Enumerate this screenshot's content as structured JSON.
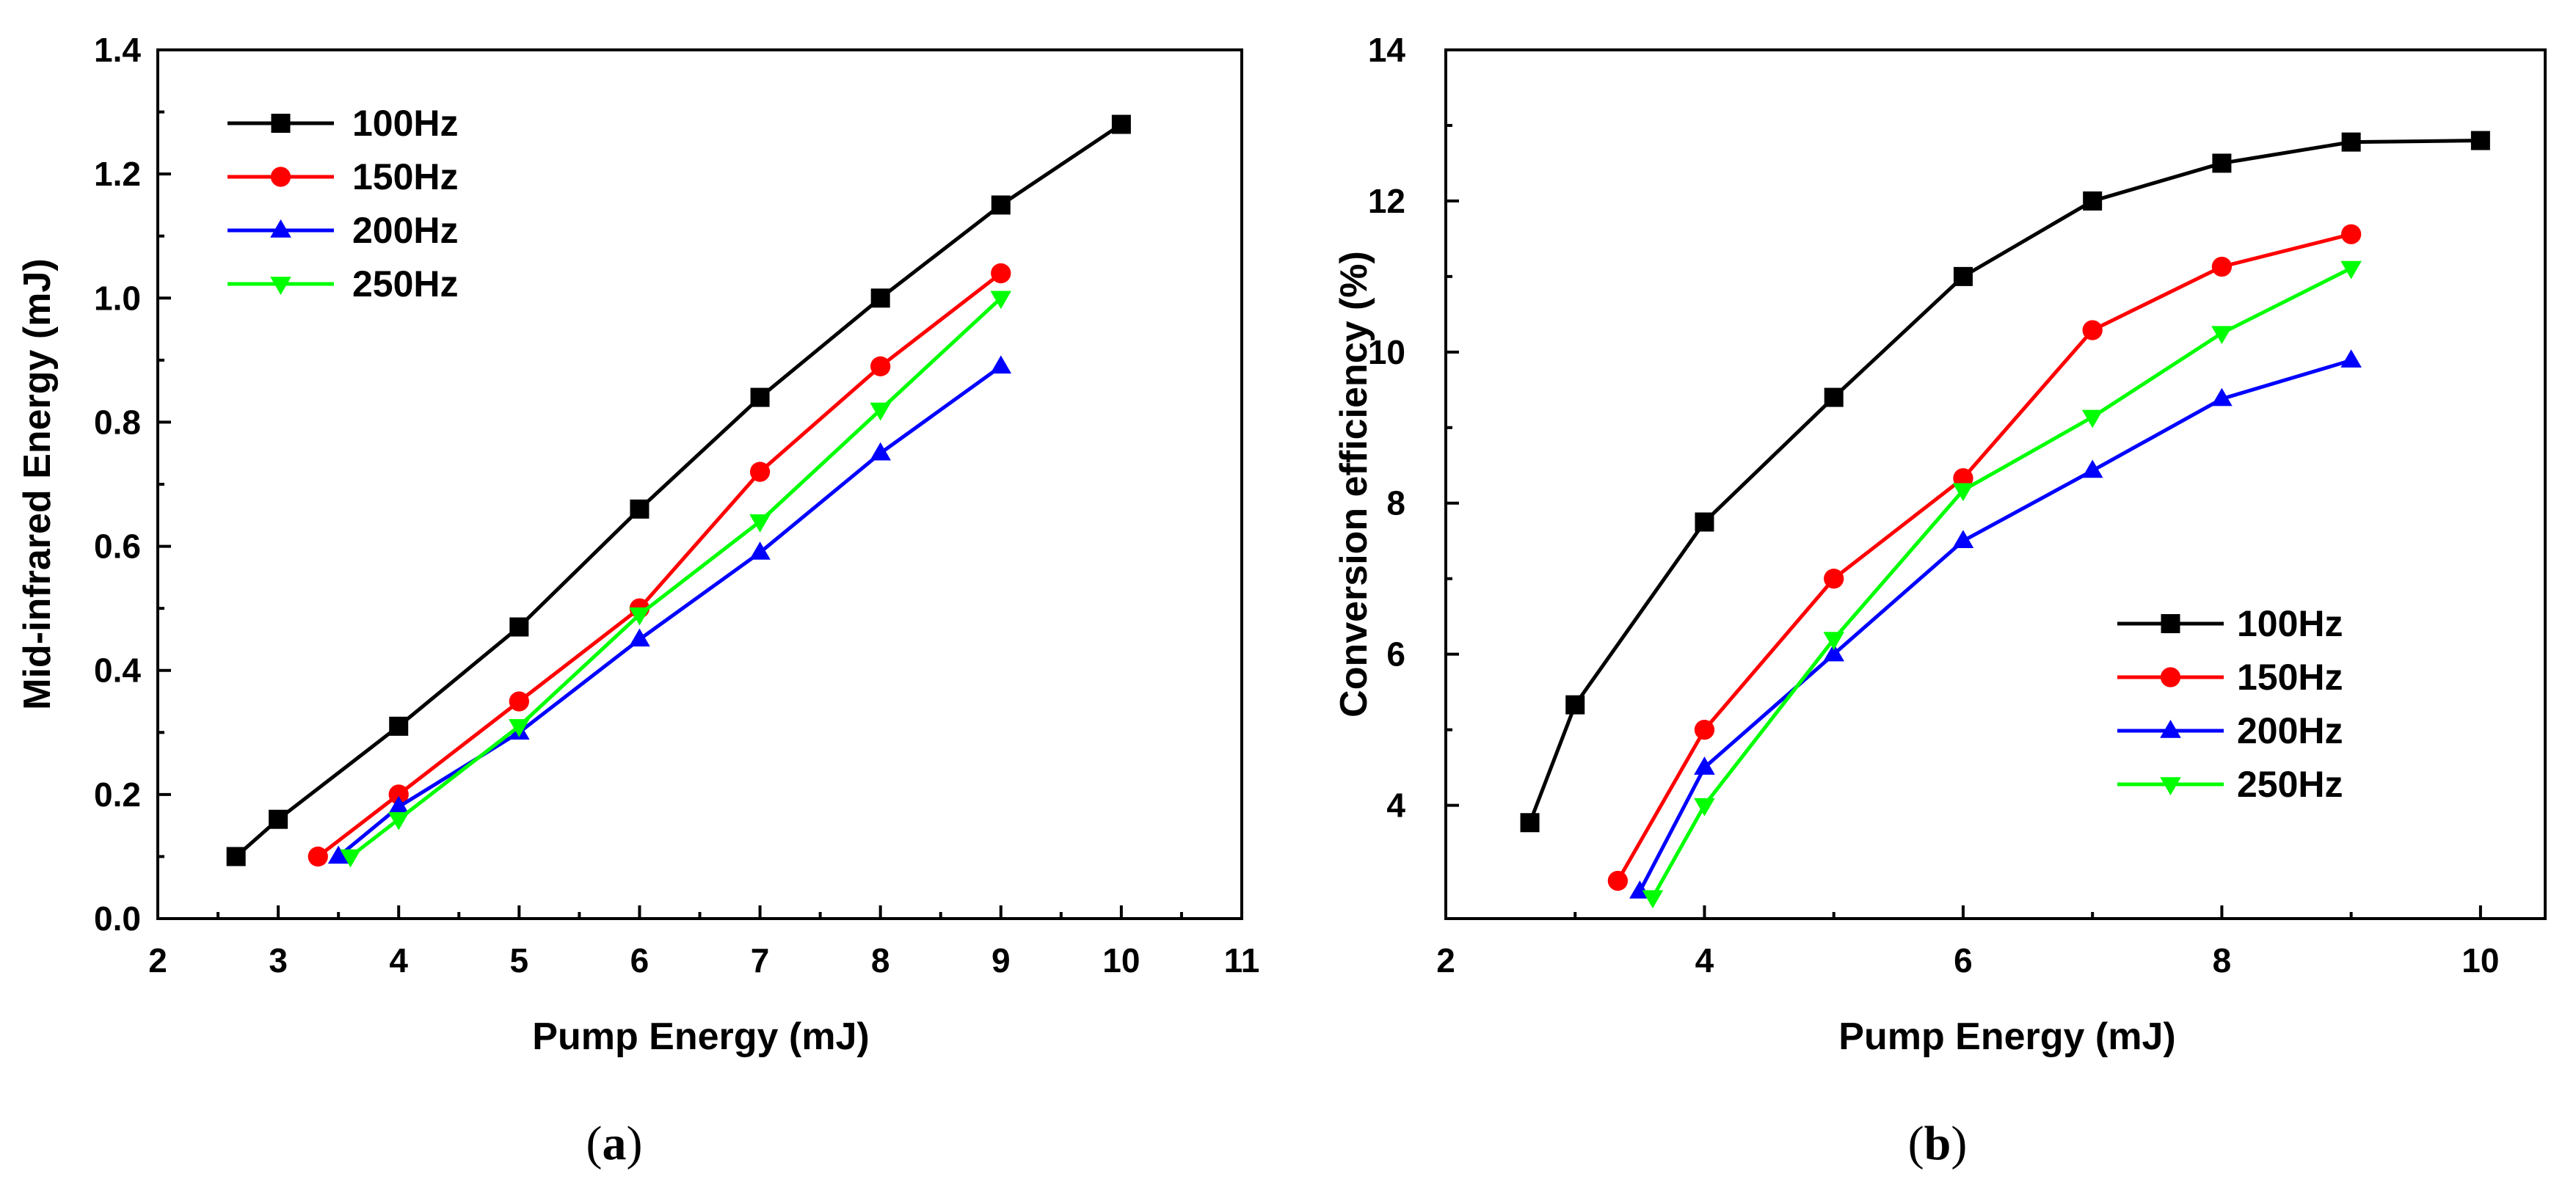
{
  "chart_data": [
    {
      "type": "line",
      "id": "a",
      "caption": "a",
      "xlabel": "Pump Energy (mJ)",
      "ylabel": "Mid-infrared Energy (mJ)",
      "xlim": [
        2,
        11
      ],
      "ylim": [
        0.0,
        1.4
      ],
      "xticks": [
        "2",
        "3",
        "4",
        "5",
        "6",
        "7",
        "8",
        "9",
        "10",
        "11"
      ],
      "yticks": [
        "0.0",
        "0.2",
        "0.4",
        "0.6",
        "0.8",
        "1.0",
        "1.2",
        "1.4"
      ],
      "legend_position": "top-left",
      "series": [
        {
          "name": "100Hz",
          "color": "#000000",
          "marker": "square",
          "x": [
            2.65,
            3,
            4,
            5,
            6,
            7,
            8,
            9,
            10
          ],
          "y": [
            0.1,
            0.16,
            0.31,
            0.47,
            0.66,
            0.84,
            1.0,
            1.15,
            1.28
          ]
        },
        {
          "name": "150Hz",
          "color": "#ff0000",
          "marker": "circle",
          "x": [
            3.33,
            4,
            5,
            6,
            7,
            8,
            9
          ],
          "y": [
            0.1,
            0.2,
            0.35,
            0.5,
            0.72,
            0.89,
            1.04
          ]
        },
        {
          "name": "200Hz",
          "color": "#0000ff",
          "marker": "triangle-up",
          "x": [
            3.5,
            4,
            5,
            6,
            7,
            8,
            9
          ],
          "y": [
            0.1,
            0.18,
            0.3,
            0.45,
            0.59,
            0.75,
            0.89
          ]
        },
        {
          "name": "250Hz",
          "color": "#00ff00",
          "marker": "triangle-down",
          "x": [
            3.6,
            4,
            5,
            6,
            7,
            8,
            9
          ],
          "y": [
            0.1,
            0.16,
            0.31,
            0.49,
            0.64,
            0.82,
            1.0
          ]
        }
      ]
    },
    {
      "type": "line",
      "id": "b",
      "caption": "b",
      "xlabel": "Pump Energy (mJ)",
      "ylabel": "Conversion efficiency (%)",
      "xlim": [
        2,
        10.5
      ],
      "ylim": [
        2.5,
        14
      ],
      "xticks": [
        "2",
        "4",
        "6",
        "8",
        "10"
      ],
      "yticks": [
        "4",
        "6",
        "8",
        "10",
        "12",
        "14"
      ],
      "legend_position": "bottom-right",
      "series": [
        {
          "name": "100Hz",
          "color": "#000000",
          "marker": "square",
          "x": [
            2.65,
            3,
            4,
            5,
            6,
            7,
            8,
            9,
            10
          ],
          "y": [
            3.77,
            5.33,
            7.75,
            9.4,
            11.0,
            12.0,
            12.5,
            12.78,
            12.8
          ]
        },
        {
          "name": "150Hz",
          "color": "#ff0000",
          "marker": "circle",
          "x": [
            3.33,
            4,
            5,
            6,
            7,
            8,
            9
          ],
          "y": [
            3.0,
            5.0,
            7.0,
            8.33,
            10.29,
            11.13,
            11.56
          ]
        },
        {
          "name": "200Hz",
          "color": "#0000ff",
          "marker": "triangle-up",
          "x": [
            3.5,
            4,
            5,
            6,
            7,
            8,
            9
          ],
          "y": [
            2.86,
            4.5,
            6.0,
            7.5,
            8.43,
            9.38,
            9.89
          ]
        },
        {
          "name": "250Hz",
          "color": "#00ff00",
          "marker": "triangle-down",
          "x": [
            3.6,
            4,
            5,
            6,
            7,
            8,
            9
          ],
          "y": [
            2.78,
            4.0,
            6.2,
            8.17,
            9.14,
            10.25,
            11.11
          ]
        }
      ]
    }
  ]
}
